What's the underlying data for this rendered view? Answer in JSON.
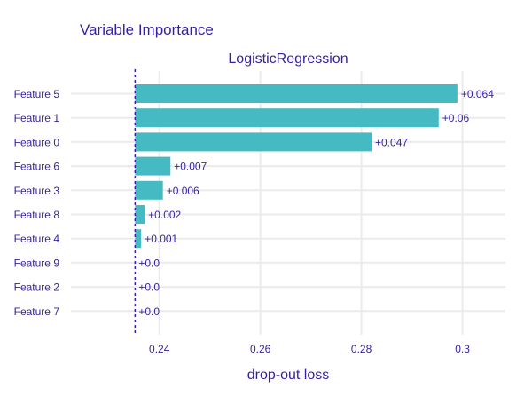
{
  "chart_data": {
    "type": "bar",
    "orientation": "horizontal",
    "title": "Variable Importance",
    "subtitle": "LogisticRegression",
    "xlabel": "drop-out loss",
    "ylabel": "",
    "baseline": 0.2352,
    "xlim": [
      0.2225,
      0.3085
    ],
    "xticks": [
      0.24,
      0.26,
      0.28,
      0.3
    ],
    "xtick_labels": [
      "0.24",
      "0.26",
      "0.28",
      "0.3"
    ],
    "grid": true,
    "legend": "none",
    "bar_color": "#46bac2",
    "text_color": "#371ea3",
    "baseline_color": "#371ea3",
    "categories": [
      "Feature 5",
      "Feature 1",
      "Feature 0",
      "Feature 6",
      "Feature 3",
      "Feature 8",
      "Feature 4",
      "Feature 9",
      "Feature 2",
      "Feature 7"
    ],
    "values": [
      0.299,
      0.2953,
      0.282,
      0.2422,
      0.2407,
      0.2371,
      0.2364,
      0.2352,
      0.2352,
      0.2352
    ],
    "labels": [
      "+0.064",
      "+0.06",
      "+0.047",
      "+0.007",
      "+0.006",
      "+0.002",
      "+0.001",
      "+0.0",
      "+0.0",
      "+0.0"
    ]
  }
}
